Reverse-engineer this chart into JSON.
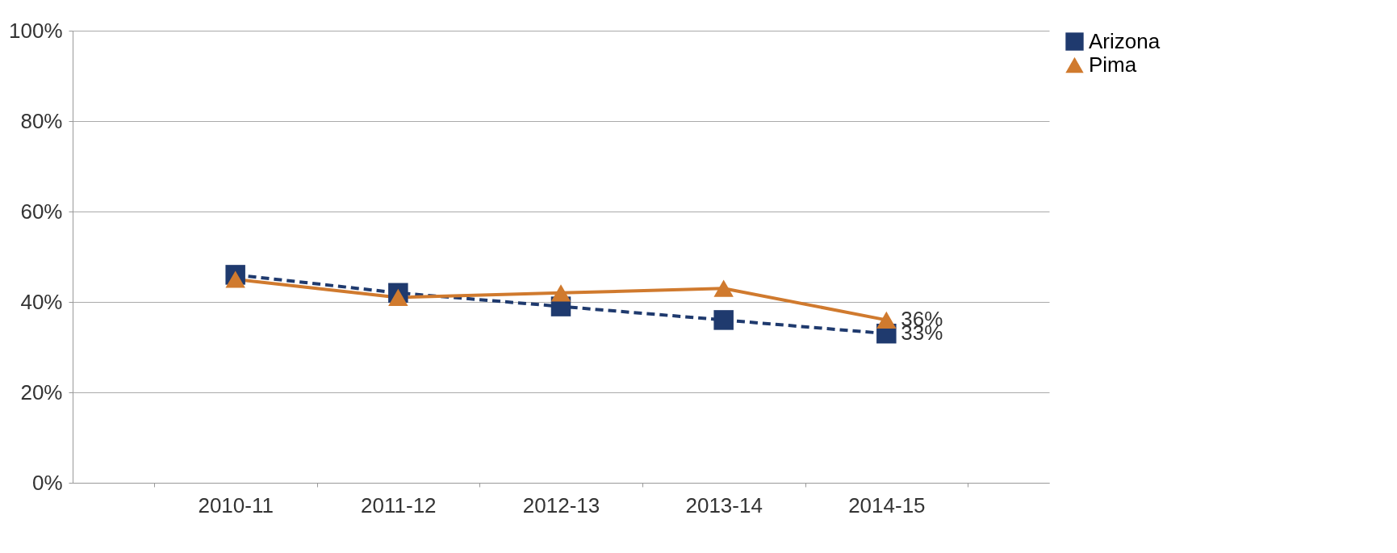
{
  "chart_data": {
    "type": "line",
    "categories": [
      "2010-11",
      "2011-12",
      "2012-13",
      "2013-14",
      "2014-15"
    ],
    "series": [
      {
        "name": "Arizona",
        "color": "#1f3a6e",
        "marker": "square",
        "line_style": "dashed",
        "values": [
          46,
          42,
          39,
          36,
          33
        ],
        "value_labels": [
          null,
          null,
          null,
          null,
          "33%"
        ]
      },
      {
        "name": "Pima",
        "color": "#d07a2e",
        "marker": "triangle",
        "line_style": "solid",
        "values": [
          45,
          41,
          42,
          43,
          36
        ],
        "value_labels": [
          null,
          null,
          null,
          null,
          "36%"
        ]
      }
    ],
    "ylim": [
      0,
      100
    ],
    "yticks": [
      {
        "value": 0,
        "label": "0%"
      },
      {
        "value": 20,
        "label": "20%"
      },
      {
        "value": 40,
        "label": "40%"
      },
      {
        "value": 60,
        "label": "60%"
      },
      {
        "value": 80,
        "label": "80%"
      },
      {
        "value": 100,
        "label": "100%"
      }
    ],
    "grid": "y",
    "legend": "right"
  }
}
